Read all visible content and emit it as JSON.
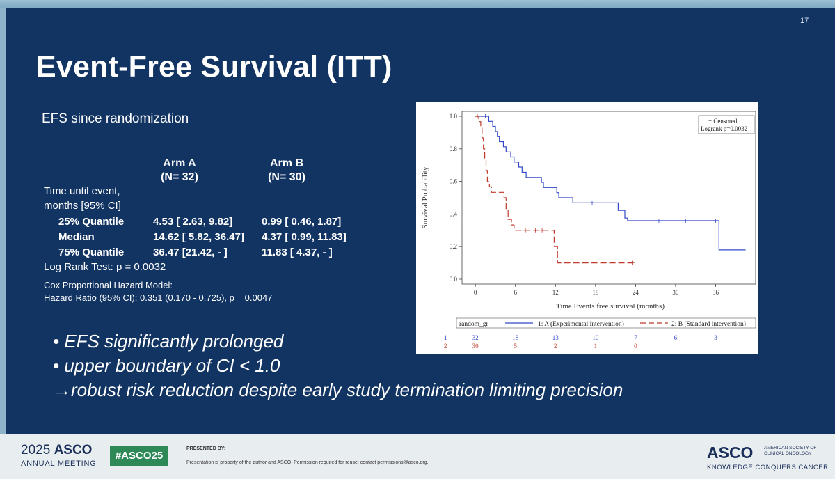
{
  "slide": {
    "number": "17",
    "title": "Event-Free Survival (ITT)",
    "subtitle": "EFS since randomization"
  },
  "table": {
    "arm_a_label": "Arm A",
    "arm_a_n": "(N= 32)",
    "arm_b_label": "Arm B",
    "arm_b_n": "(N= 30)",
    "time_label_1": "Time until event,",
    "time_label_2": "months [95% CI]",
    "rows": [
      {
        "label": "25% Quantile",
        "a": "4.53 [ 2.63, 9.82]",
        "b": "0.99 [ 0.46, 1.87]"
      },
      {
        "label": "Median",
        "a": "14.62 [ 5.82, 36.47]",
        "b": "4.37 [ 0.99, 11.83]"
      },
      {
        "label": "75% Quantile",
        "a": "36.47 [21.42, - ]",
        "b": "11.83 [ 4.37, - ]"
      }
    ],
    "logrank": "Log Rank Test: p = 0.0032",
    "cox_1": "Cox Proportional Hazard Model:",
    "cox_2": "Hazard Ratio (95% CI): 0.351 (0.170 - 0.725), p = 0.0047"
  },
  "bullets": {
    "b1": "•  EFS significantly prolonged",
    "b2": "•  upper boundary of CI < 1.0",
    "b3": "→robust risk reduction despite early study termination limiting precision"
  },
  "chart_data": {
    "type": "line",
    "subtype": "kaplan-meier step",
    "xlabel": "Time Events free survival (months)",
    "ylabel": "Survival Probability",
    "xlim": [
      -2,
      42
    ],
    "ylim": [
      -0.03,
      1.03
    ],
    "xticks": [
      "0",
      "6",
      "12",
      "18",
      "24",
      "30",
      "36"
    ],
    "yticks": [
      "0.0",
      "0.2",
      "0.4",
      "0.6",
      "0.8",
      "1.0"
    ],
    "legend_censored": "+ Censored",
    "legend_logrank": "Logrank p=0.0032",
    "legend_group_label": "random_gr",
    "colors": {
      "armA": "#3348c8",
      "armB": "#c0392b"
    },
    "series": [
      {
        "name": "1: A (Experimental intervention)",
        "row_label": "1",
        "color": "#3348c8",
        "steps": [
          [
            0,
            1.0
          ],
          [
            2,
            1.0
          ],
          [
            2,
            0.969
          ],
          [
            2.6,
            0.969
          ],
          [
            2.6,
            0.938
          ],
          [
            3,
            0.938
          ],
          [
            3,
            0.906
          ],
          [
            3.3,
            0.906
          ],
          [
            3.3,
            0.875
          ],
          [
            3.6,
            0.875
          ],
          [
            3.6,
            0.844
          ],
          [
            4.2,
            0.844
          ],
          [
            4.2,
            0.813
          ],
          [
            4.6,
            0.813
          ],
          [
            4.6,
            0.781
          ],
          [
            5.3,
            0.781
          ],
          [
            5.3,
            0.75
          ],
          [
            5.8,
            0.75
          ],
          [
            5.8,
            0.719
          ],
          [
            6.5,
            0.719
          ],
          [
            6.5,
            0.688
          ],
          [
            7,
            0.688
          ],
          [
            7,
            0.656
          ],
          [
            7.6,
            0.656
          ],
          [
            7.6,
            0.625
          ],
          [
            9.9,
            0.625
          ],
          [
            9.9,
            0.594
          ],
          [
            10.2,
            0.594
          ],
          [
            10.2,
            0.563
          ],
          [
            12.2,
            0.563
          ],
          [
            12.2,
            0.531
          ],
          [
            12.5,
            0.531
          ],
          [
            12.5,
            0.5
          ],
          [
            14.6,
            0.5
          ],
          [
            14.6,
            0.469
          ],
          [
            21.4,
            0.469
          ],
          [
            21.4,
            0.422
          ],
          [
            22.4,
            0.422
          ],
          [
            22.4,
            0.375
          ],
          [
            22.8,
            0.375
          ],
          [
            22.8,
            0.359
          ],
          [
            36.5,
            0.359
          ],
          [
            36.5,
            0.18
          ],
          [
            40.5,
            0.18
          ]
        ],
        "censored": [
          [
            1.5,
            1.0
          ],
          [
            17.5,
            0.469
          ],
          [
            27.5,
            0.359
          ],
          [
            31.5,
            0.359
          ],
          [
            36,
            0.359
          ]
        ],
        "at_risk": [
          "32",
          "18",
          "13",
          "10",
          "7",
          "6",
          "3"
        ]
      },
      {
        "name": "2: B (Standard intervention)",
        "row_label": "2",
        "color": "#c0392b",
        "steps": [
          [
            0,
            1.0
          ],
          [
            0.5,
            1.0
          ],
          [
            0.5,
            0.967
          ],
          [
            0.8,
            0.967
          ],
          [
            0.8,
            0.933
          ],
          [
            1,
            0.933
          ],
          [
            1,
            0.867
          ],
          [
            1.2,
            0.867
          ],
          [
            1.2,
            0.8
          ],
          [
            1.4,
            0.8
          ],
          [
            1.4,
            0.733
          ],
          [
            1.6,
            0.733
          ],
          [
            1.6,
            0.667
          ],
          [
            1.8,
            0.667
          ],
          [
            1.8,
            0.6
          ],
          [
            2.1,
            0.6
          ],
          [
            2.1,
            0.567
          ],
          [
            2.4,
            0.567
          ],
          [
            2.4,
            0.533
          ],
          [
            4.3,
            0.533
          ],
          [
            4.3,
            0.5
          ],
          [
            4.6,
            0.5
          ],
          [
            4.6,
            0.433
          ],
          [
            4.9,
            0.433
          ],
          [
            4.9,
            0.367
          ],
          [
            5.4,
            0.367
          ],
          [
            5.4,
            0.333
          ],
          [
            5.8,
            0.333
          ],
          [
            5.8,
            0.3
          ],
          [
            11.8,
            0.3
          ],
          [
            11.8,
            0.2
          ],
          [
            12.3,
            0.2
          ],
          [
            12.3,
            0.1
          ],
          [
            23.5,
            0.1
          ]
        ],
        "censored": [
          [
            0.3,
            1.0
          ],
          [
            7.5,
            0.3
          ],
          [
            9,
            0.3
          ],
          [
            10,
            0.3
          ],
          [
            23.5,
            0.1
          ]
        ],
        "at_risk": [
          "30",
          "5",
          "2",
          "1",
          "0"
        ]
      }
    ]
  },
  "footer": {
    "year": "2025",
    "asco": "ASCO",
    "annual": "ANNUAL MEETING",
    "hashtag": "#ASCO25",
    "presented_by": "PRESENTED BY:",
    "property": "Presentation is property of the author and ASCO. Permission required for reuse; contact permissions@asco.org.",
    "logo": "ASCO",
    "society_1": "AMERICAN SOCIETY OF",
    "society_2": "CLINICAL ONCOLOGY",
    "tagline": "KNOWLEDGE CONQUERS CANCER"
  }
}
